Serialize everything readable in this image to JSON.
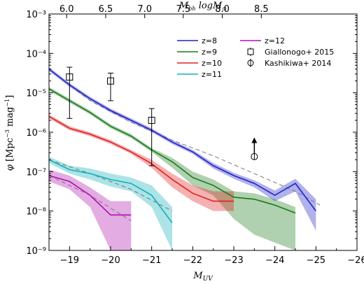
{
  "chart_data": {
    "type": "line",
    "xlabel": "M_UV",
    "ylabel": "φ [Mpc^-3 mag^-1]",
    "top_xlabel": "M_bh logM_⊙",
    "xlim": [
      -18.5,
      -26
    ],
    "ylim_log10": [
      -9,
      -3
    ],
    "x_ticks": [
      -19,
      -20,
      -21,
      -22,
      -23,
      -24,
      -25,
      -26
    ],
    "x_tick_labels": [
      "−19",
      "−20",
      "−21",
      "−22",
      "−23",
      "−24",
      "−25",
      "−26"
    ],
    "y_ticks_log10": [
      -9,
      -8,
      -7,
      -6,
      -5,
      -4,
      -3
    ],
    "y_tick_labels": [
      "10⁻⁹",
      "10⁻⁸",
      "10⁻⁷",
      "10⁻⁶",
      "10⁻⁵",
      "10⁻⁴",
      "10⁻³"
    ],
    "top_ticks": [
      {
        "label": "6.0",
        "x": -18.93
      },
      {
        "label": "6.5",
        "x": -19.88
      },
      {
        "label": "7.0",
        "x": -20.83
      },
      {
        "label": "7.5",
        "x": -21.77
      },
      {
        "label": "8.0",
        "x": -22.72
      },
      {
        "label": "8.5",
        "x": -23.67
      }
    ],
    "legend": {
      "placement": "top-right",
      "entries": [
        {
          "label": "z=8",
          "color": "#2020c8",
          "kind": "line"
        },
        {
          "label": "z=9",
          "color": "#1a7a1a",
          "kind": "line"
        },
        {
          "label": "z=10",
          "color": "#e02020",
          "kind": "line"
        },
        {
          "label": "z=11",
          "color": "#10b0b8",
          "kind": "line"
        },
        {
          "label": "z=12",
          "color": "#b010b0",
          "kind": "line"
        },
        {
          "label": "Giallonogo+ 2015",
          "kind": "square-marker"
        },
        {
          "label": "Kashikiwa+ 2014",
          "kind": "circle-marker"
        }
      ]
    },
    "series": [
      {
        "name": "z=8",
        "color": "#2020c8",
        "x": [
          -18.5,
          -19,
          -19.5,
          -20,
          -20.5,
          -21,
          -21.5,
          -22,
          -22.5,
          -23,
          -23.5,
          -24,
          -24.5,
          -25
        ],
        "y_log10": [
          -4.4,
          -4.8,
          -5.15,
          -5.45,
          -5.7,
          -5.95,
          -6.25,
          -6.5,
          -6.85,
          -7.1,
          -7.3,
          -7.6,
          -7.3,
          -8.0
        ],
        "band_upper_log10": [
          -4.35,
          -4.75,
          -5.1,
          -5.4,
          -5.65,
          -5.9,
          -6.2,
          -6.45,
          -6.78,
          -7.03,
          -7.22,
          -7.48,
          -7.18,
          -7.7
        ],
        "band_lower_log10": [
          -4.45,
          -4.85,
          -5.2,
          -5.5,
          -5.75,
          -6.0,
          -6.3,
          -6.55,
          -6.92,
          -7.18,
          -7.4,
          -7.75,
          -7.5,
          -8.5
        ]
      },
      {
        "name": "z=9",
        "color": "#1a7a1a",
        "x": [
          -18.5,
          -19,
          -19.5,
          -20,
          -20.5,
          -21,
          -21.5,
          -22,
          -22.5,
          -23,
          -23.5,
          -24,
          -24.5
        ],
        "y_log10": [
          -4.9,
          -5.2,
          -5.5,
          -5.85,
          -6.1,
          -6.45,
          -6.75,
          -7.15,
          -7.35,
          -7.65,
          -7.7,
          -7.85,
          -8.05
        ],
        "band_upper_log10": [
          -4.85,
          -5.15,
          -5.45,
          -5.8,
          -6.05,
          -6.4,
          -6.65,
          -7.0,
          -7.2,
          -7.5,
          -7.55,
          -7.7,
          -7.9
        ],
        "band_lower_log10": [
          -4.95,
          -5.25,
          -5.55,
          -5.9,
          -6.15,
          -6.5,
          -6.9,
          -7.35,
          -7.6,
          -8.2,
          -8.6,
          -8.8,
          -9.0
        ]
      },
      {
        "name": "z=10",
        "color": "#e02020",
        "x": [
          -18.5,
          -19,
          -19.5,
          -20,
          -20.5,
          -21,
          -21.5,
          -22,
          -22.5,
          -23
        ],
        "y_log10": [
          -5.6,
          -5.9,
          -6.05,
          -6.25,
          -6.5,
          -6.8,
          -7.2,
          -7.55,
          -7.75,
          -7.75
        ],
        "band_upper_log10": [
          -5.55,
          -5.85,
          -6.0,
          -6.2,
          -6.45,
          -6.7,
          -7.05,
          -7.35,
          -7.5,
          -7.5
        ],
        "band_lower_log10": [
          -5.65,
          -5.95,
          -6.1,
          -6.3,
          -6.55,
          -6.9,
          -7.4,
          -7.75,
          -8.0,
          -8.0
        ]
      },
      {
        "name": "z=11",
        "color": "#10b0b8",
        "x": [
          -18.5,
          -19,
          -19.5,
          -20,
          -20.5,
          -21,
          -21.5
        ],
        "y_log10": [
          -6.7,
          -6.95,
          -7.05,
          -7.2,
          -7.3,
          -7.6,
          -8.3
        ],
        "band_upper_log10": [
          -6.62,
          -6.85,
          -6.92,
          -7.05,
          -7.15,
          -7.35,
          -7.9
        ],
        "band_lower_log10": [
          -6.78,
          -7.05,
          -7.2,
          -7.38,
          -7.5,
          -7.9,
          -9.0
        ]
      },
      {
        "name": "z=12",
        "color": "#b010b0",
        "x": [
          -18.5,
          -19,
          -19.5,
          -20,
          -20.5
        ],
        "y_log10": [
          -7.1,
          -7.25,
          -7.6,
          -8.1,
          -8.1
        ],
        "band_upper_log10": [
          -6.95,
          -7.1,
          -7.4,
          -7.75,
          -7.75
        ],
        "band_lower_log10": [
          -7.25,
          -7.45,
          -7.9,
          -9.0,
          -9.0
        ]
      }
    ],
    "fits": {
      "color": "#777777",
      "style": "dashed",
      "lines": [
        {
          "x": [
            -18.5,
            -19.5,
            -20.5,
            -21.5,
            -22.5,
            -23.5,
            -24.5,
            -25.1
          ],
          "y_log10": [
            -4.4,
            -5.2,
            -5.75,
            -6.2,
            -6.6,
            -7.05,
            -7.5,
            -7.85
          ]
        },
        {
          "x": [
            -18.5,
            -19.5,
            -20.5,
            -21.5
          ],
          "y_log10": [
            -6.7,
            -7.05,
            -7.45,
            -8.0
          ]
        },
        {
          "x": [
            -18.5,
            -19.5,
            -20.5
          ],
          "y_log10": [
            -7.1,
            -7.6,
            -8.25
          ]
        }
      ]
    },
    "observations": {
      "giallongo_2015": [
        {
          "x": -19.0,
          "y_log10": -4.6,
          "err_up_log10": -4.35,
          "err_low_log10": -5.65
        },
        {
          "x": -20.0,
          "y_log10": -4.7,
          "err_up_log10": -4.5,
          "err_low_log10": -5.2
        },
        {
          "x": -21.0,
          "y_log10": -5.7,
          "err_up_log10": -5.4,
          "err_low_log10": -6.85
        }
      ],
      "kashikawa_2014": [
        {
          "x": -23.5,
          "y_log10": -6.62,
          "arrow_to_log10": -6.15
        }
      ]
    }
  }
}
